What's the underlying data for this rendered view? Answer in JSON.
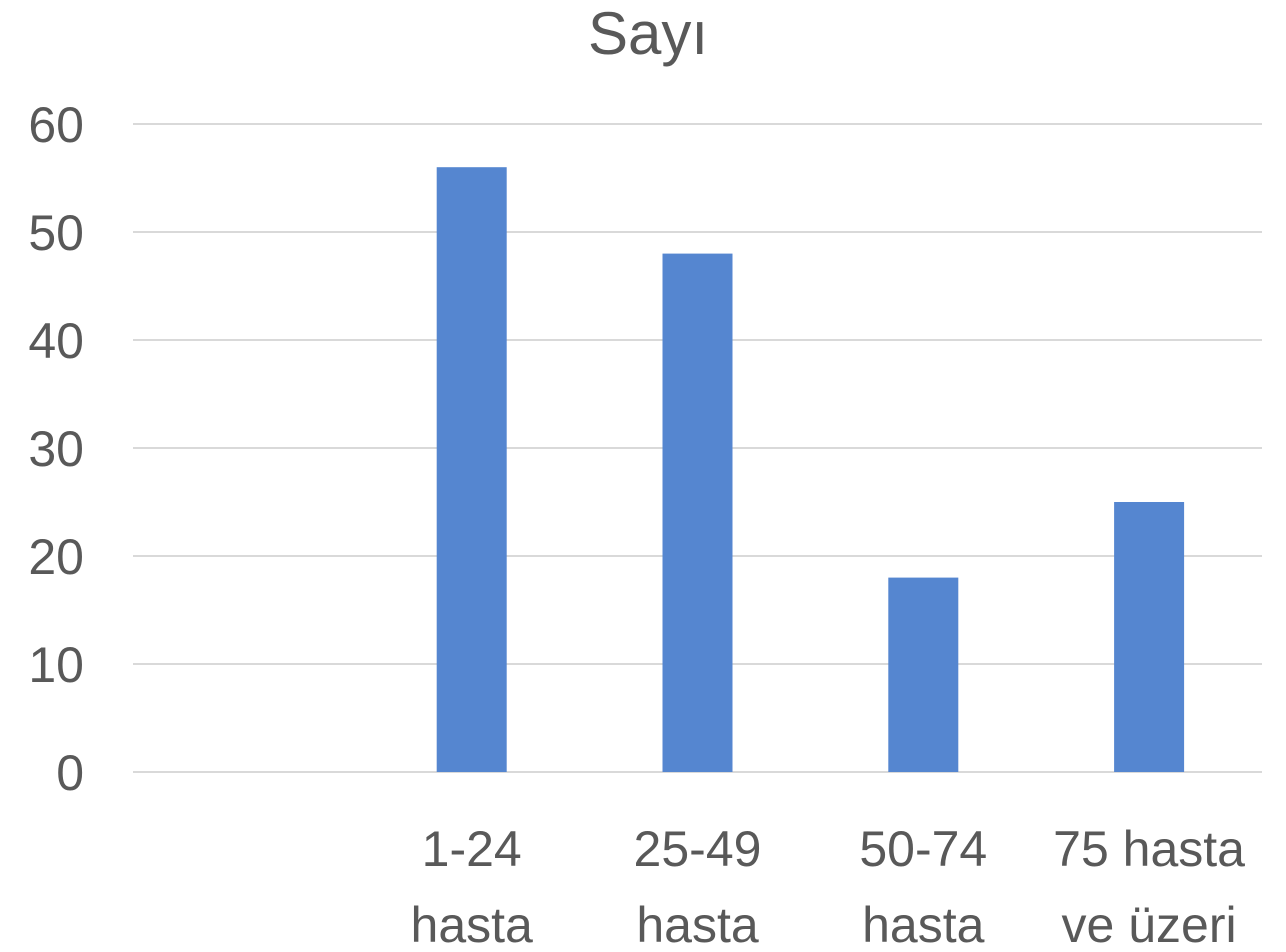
{
  "chart_data": {
    "type": "bar",
    "title": "Sayı",
    "categories": [
      "",
      [
        "1-24",
        "hasta"
      ],
      [
        "25-49",
        "hasta"
      ],
      [
        "50-74",
        "hasta"
      ],
      [
        "75 hasta",
        "ve üzeri"
      ]
    ],
    "values": [
      null,
      56,
      48,
      18,
      25
    ],
    "ylim": [
      0,
      60
    ],
    "yticks": [
      0,
      10,
      20,
      30,
      40,
      50,
      60
    ],
    "grid": true,
    "legend": "none",
    "colors": {
      "bar": "#5586d0",
      "text": "#595959",
      "grid": "#d9d9d9"
    }
  }
}
